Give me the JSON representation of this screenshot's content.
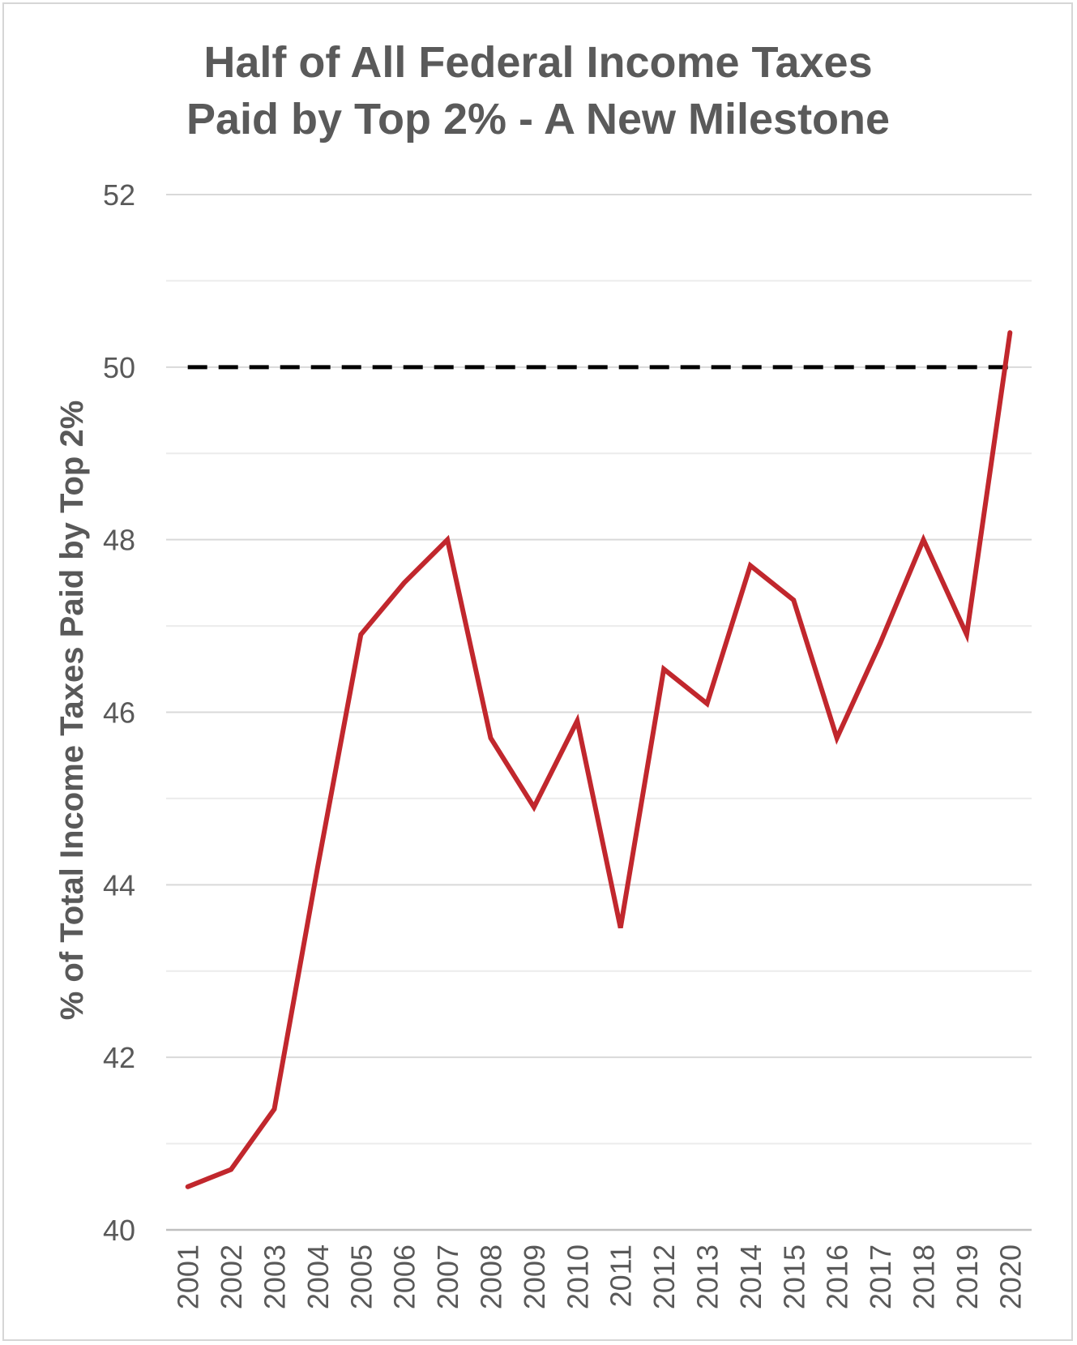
{
  "chart_data": {
    "type": "line",
    "title_lines": [
      "Half of All Federal Income Taxes",
      "Paid by Top 2% - A New Milestone"
    ],
    "ylabel": "% of Total Income Taxes Paid by Top 2%",
    "xlabel": "",
    "ylim": [
      40,
      52
    ],
    "yticks": [
      "40",
      "42",
      "44",
      "46",
      "48",
      "50",
      "52"
    ],
    "grid": "horizontal",
    "legend": "none",
    "categories": [
      "2001",
      "2002",
      "2003",
      "2004",
      "2005",
      "2006",
      "2007",
      "2008",
      "2009",
      "2010",
      "2011",
      "2012",
      "2013",
      "2014",
      "2015",
      "2016",
      "2017",
      "2018",
      "2019",
      "2020"
    ],
    "series": [
      {
        "values": [
          40.5,
          40.7,
          41.4,
          44.2,
          46.9,
          47.5,
          48.0,
          45.7,
          44.9,
          45.9,
          43.5,
          46.5,
          46.1,
          47.7,
          47.3,
          45.7,
          46.8,
          48.0,
          46.9,
          50.4
        ],
        "color": "#c1272d"
      }
    ],
    "reference_line": {
      "value": 50,
      "style": "dashed",
      "color": "#000000"
    },
    "colors": {
      "title": "#5a5a5a",
      "text": "#595959",
      "grid": "#d9d9d9",
      "minor_grid": "#ececec",
      "axis": "#bfbfbf"
    }
  }
}
